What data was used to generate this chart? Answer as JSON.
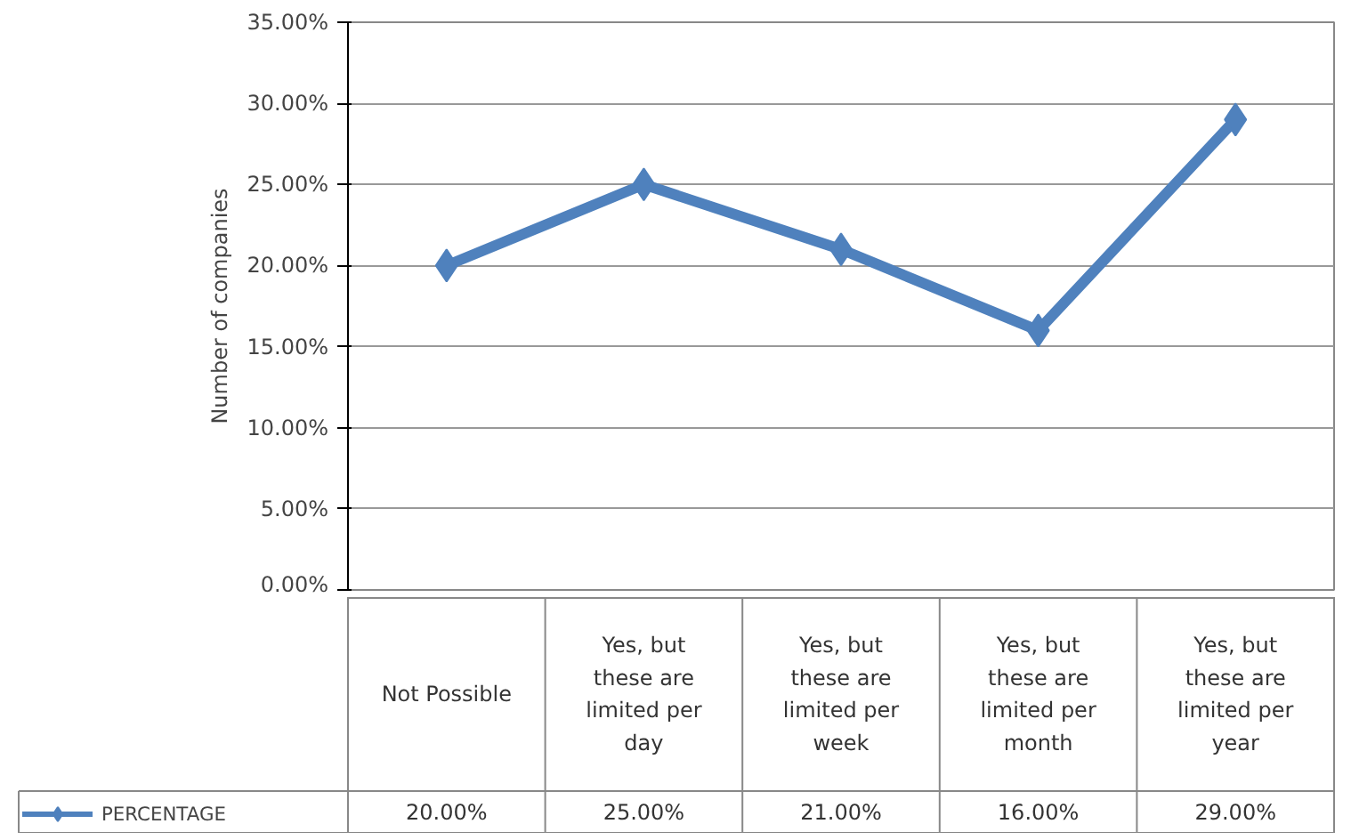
{
  "chart_data": {
    "type": "line",
    "ylabel": "Number of companies",
    "categories": [
      "Not Possible",
      "Yes, but these are limited per day",
      "Yes, but these are limited per week",
      "Yes, but these are limited per month",
      "Yes, but these are limited per year"
    ],
    "series": [
      {
        "name": "PERCENTAGE",
        "color": "#4f81bd",
        "values": [
          20,
          25,
          21,
          16,
          29
        ],
        "value_labels": [
          "20.00%",
          "25.00%",
          "21.00%",
          "16.00%",
          "29.00%"
        ]
      }
    ],
    "ylim": [
      0,
      35
    ],
    "yticks": [
      {
        "value": 0,
        "label": "0.00%"
      },
      {
        "value": 5,
        "label": "5.00%"
      },
      {
        "value": 10,
        "label": "10.00%"
      },
      {
        "value": 15,
        "label": "15.00%"
      },
      {
        "value": 20,
        "label": "20.00%"
      },
      {
        "value": 25,
        "label": "25.00%"
      },
      {
        "value": 30,
        "label": "30.00%"
      },
      {
        "value": 35,
        "label": "35.00%"
      }
    ],
    "grid": "y",
    "marker": "diamond",
    "line_style": "solid",
    "legend": "bottom left"
  }
}
